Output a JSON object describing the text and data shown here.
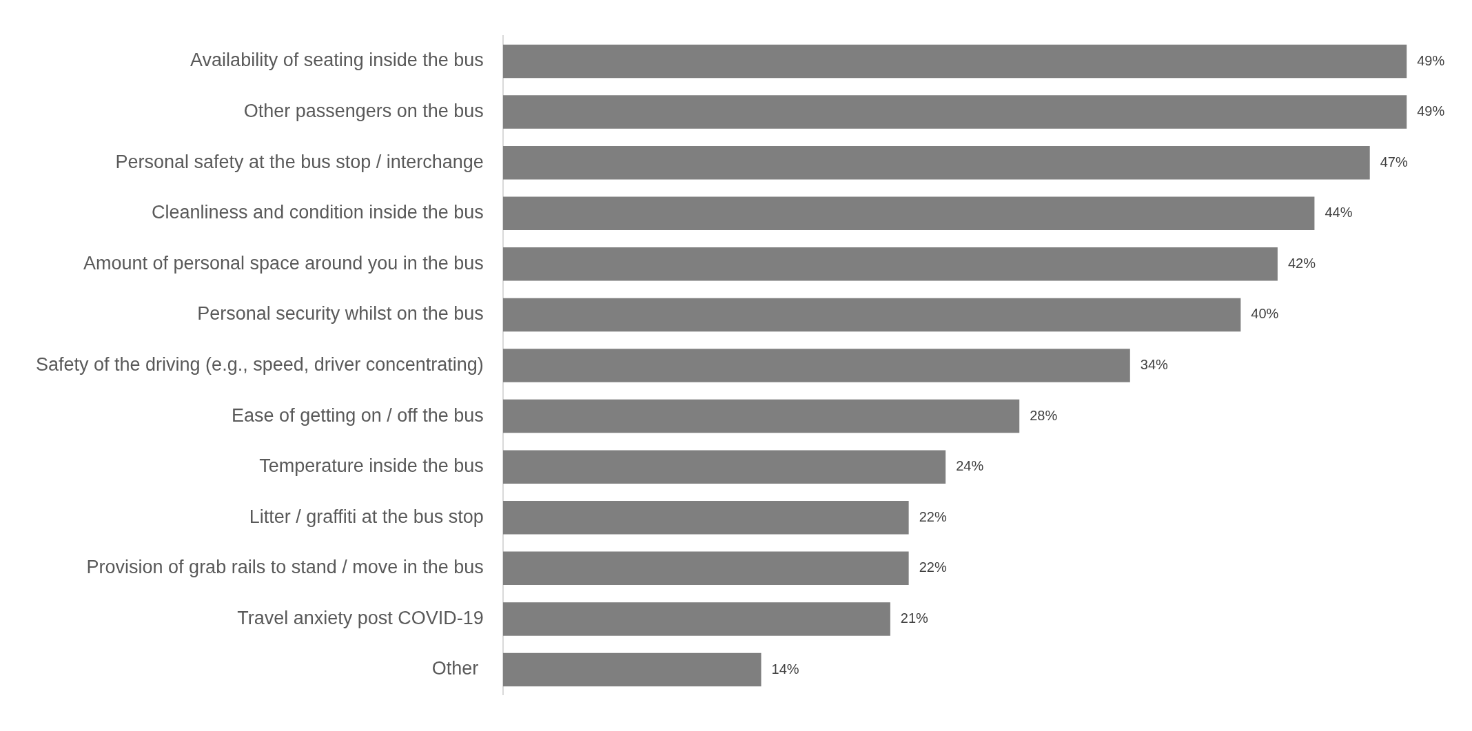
{
  "chart_data": {
    "type": "bar",
    "orientation": "horizontal",
    "categories": [
      "Availability of seating inside the bus",
      "Other passengers on the bus",
      "Personal safety at the bus stop / interchange",
      "Cleanliness and condition inside the bus",
      "Amount of personal space around you in the bus",
      "Personal security whilst on the bus",
      "Safety of the driving (e.g., speed, driver concentrating)",
      "Ease of getting on / off the bus",
      "Temperature inside the bus",
      "Litter / graffiti at the bus stop",
      "Provision of grab rails to stand / move in the bus",
      "Travel anxiety post COVID-19",
      "Other "
    ],
    "values": [
      49,
      49,
      47,
      44,
      42,
      40,
      34,
      28,
      24,
      22,
      22,
      21,
      14
    ],
    "value_labels": [
      "49%",
      "49%",
      "47%",
      "44%",
      "42%",
      "40%",
      "34%",
      "28%",
      "24%",
      "22%",
      "22%",
      "21%",
      "14%"
    ],
    "color": "#7f7f7f",
    "legend": false
  }
}
